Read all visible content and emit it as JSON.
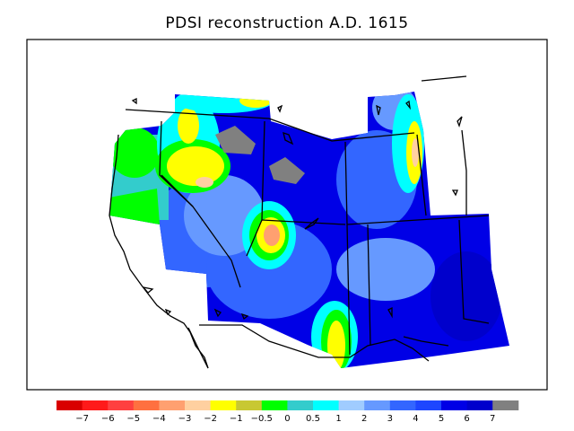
{
  "title": "PDSI reconstruction A.D. 1615",
  "colorbar": {
    "colors": [
      "#d90000",
      "#ff1a1a",
      "#ff4040",
      "#ff7040",
      "#ffa070",
      "#ffd0a0",
      "#ffff00",
      "#c8c832",
      "#00ff00",
      "#33cccc",
      "#00ffff",
      "#a0ccff",
      "#6699ff",
      "#3366ff",
      "#1e46ff",
      "#0000e6",
      "#0000cc",
      "#808080"
    ],
    "labels": [
      "−7",
      "−6",
      "−5",
      "−4",
      "−3",
      "−2",
      "−1",
      "−0.5",
      "0",
      "0.5",
      "1",
      "2",
      "3",
      "4",
      "5",
      "6",
      "7"
    ]
  },
  "colors": {
    "water": "#ffffff",
    "coast": "#000000",
    "missing": "#808080"
  }
}
